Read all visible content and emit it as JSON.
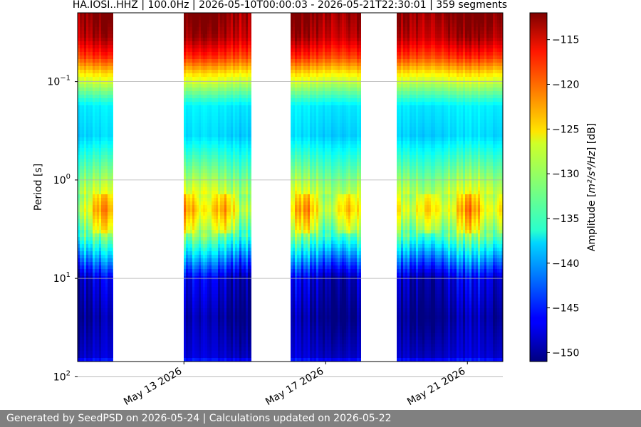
{
  "chart_data": {
    "type": "heatmap",
    "title": "HA.IOSI..HHZ | 100.0Hz | 2026-05-10T00:00:03 - 2026-05-21T22:30:01 | 359 segments",
    "xlabel": "",
    "ylabel": "Period [s]",
    "x_range": [
      "2026-05-10",
      "2026-05-22"
    ],
    "x_ticks": [
      {
        "date": "2026-05-13",
        "label": "May 13 2026"
      },
      {
        "date": "2026-05-17",
        "label": "May 17 2026"
      },
      {
        "date": "2026-05-21",
        "label": "May 21 2026"
      }
    ],
    "y_scale": "log",
    "y_range_seconds": [
      0.02,
      70
    ],
    "y_ticks": [
      {
        "value": 0.1,
        "base": "10",
        "exp": "−1"
      },
      {
        "value": 1,
        "base": "10",
        "exp": "0"
      },
      {
        "value": 10,
        "base": "10",
        "exp": "1"
      },
      {
        "value": 100,
        "base": "10",
        "exp": "2"
      }
    ],
    "grid": "horizontal",
    "data_periods": [
      {
        "start": "2026-05-10",
        "end": "2026-05-11"
      },
      {
        "start": "2026-05-13",
        "end": "2026-05-14.9"
      },
      {
        "start": "2026-05-16",
        "end": "2026-05-18"
      },
      {
        "start": "2026-05-19",
        "end": "2026-05-22"
      }
    ],
    "colorbar": {
      "label_main": "Amplitude [",
      "label_math": "m²/s⁴/Hz",
      "label_tail": "] [dB]",
      "range": [
        -151,
        -112
      ],
      "ticks": [
        -115,
        -120,
        -125,
        -130,
        -135,
        -140,
        -145,
        -150
      ],
      "tick_labels": [
        "−115",
        "−120",
        "−125",
        "−130",
        "−135",
        "−140",
        "−145",
        "−150"
      ],
      "colormap": "jet"
    }
  },
  "footer": {
    "text": "Generated by SeedPSD on 2026-05-24 | Calculations updated on 2026-05-22"
  }
}
